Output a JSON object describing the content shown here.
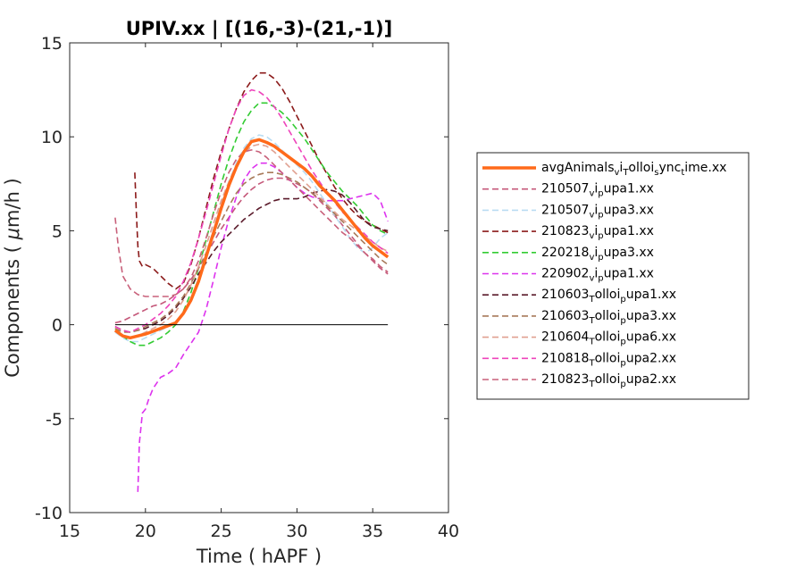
{
  "chart_data": {
    "type": "line",
    "title": "UPIV.xx  | [(16,-3)-(21,-1)]",
    "xlabel": "Time ( hAPF )",
    "ylabel_prefix": "Components ( ",
    "ylabel_mu": "μ",
    "ylabel_suffix": "m/h )",
    "xlim": [
      15,
      40
    ],
    "ylim": [
      -10,
      15
    ],
    "xticks": [
      15,
      20,
      25,
      30,
      35,
      40
    ],
    "yticks": [
      -10,
      -5,
      0,
      5,
      10,
      15
    ],
    "xtick_labels": [
      "15",
      "20",
      "25",
      "30",
      "35",
      "40"
    ],
    "ytick_labels": [
      "-10",
      "-5",
      "0",
      "5",
      "10",
      "15"
    ],
    "grid": false,
    "legend_position": "right",
    "zero_line": {
      "y": 0,
      "x": [
        18,
        36
      ],
      "color": "#000000"
    },
    "series": [
      {
        "name": "avgAnimals_v_i_T_olloi_s_ync_t_ime.xx",
        "label_parts": [
          [
            "avgAnimals",
            ""
          ],
          [
            "v",
            "sub"
          ],
          [
            "i",
            ""
          ],
          [
            "T",
            "sub"
          ],
          [
            "olloi",
            ""
          ],
          [
            "s",
            "sub"
          ],
          [
            "ync",
            ""
          ],
          [
            "t",
            "sub"
          ],
          [
            "ime.xx",
            ""
          ]
        ],
        "color": "#ff6a1a",
        "dash": "",
        "width": 3.5,
        "x": [
          18,
          18.5,
          19,
          19.5,
          20,
          20.5,
          21,
          21.5,
          22,
          22.5,
          23,
          23.5,
          24,
          24.5,
          25,
          25.5,
          26,
          26.5,
          27,
          27.5,
          28,
          28.5,
          29,
          29.5,
          30,
          30.5,
          31,
          31.5,
          32,
          32.5,
          33,
          33.5,
          34,
          34.5,
          35,
          35.5,
          36
        ],
        "y": [
          -0.3,
          -0.6,
          -0.7,
          -0.6,
          -0.5,
          -0.35,
          -0.2,
          -0.05,
          0.1,
          0.6,
          1.3,
          2.3,
          3.6,
          4.9,
          6.2,
          7.4,
          8.4,
          9.2,
          9.75,
          9.85,
          9.7,
          9.5,
          9.2,
          8.9,
          8.6,
          8.3,
          7.9,
          7.4,
          7.0,
          6.6,
          6.1,
          5.6,
          5.1,
          4.6,
          4.2,
          3.9,
          3.6
        ]
      },
      {
        "name": "210507_v_i_p_upa1.xx",
        "label_parts": [
          [
            "210507",
            ""
          ],
          [
            "v",
            "sub"
          ],
          [
            "i",
            ""
          ],
          [
            "p",
            "sub"
          ],
          [
            "upa1.xx",
            ""
          ]
        ],
        "color": "#c5587a",
        "dash": "7,4",
        "width": 1.6,
        "x": [
          18,
          18.5,
          19,
          19.5,
          20,
          20.5,
          21,
          21.5,
          22,
          22.5,
          23,
          23.5,
          24,
          24.5,
          25,
          25.5,
          26,
          26.5,
          27,
          27.5,
          28,
          28.5,
          29,
          29.5,
          30,
          30.5,
          31,
          31.5,
          32,
          32.5,
          33,
          33.5,
          34,
          34.5,
          35,
          35.5,
          36
        ],
        "y": [
          0.1,
          0.2,
          0.4,
          0.6,
          0.8,
          1.0,
          1.1,
          1.3,
          1.6,
          1.9,
          2.4,
          3.0,
          3.7,
          4.4,
          5.1,
          5.7,
          6.3,
          6.8,
          7.2,
          7.5,
          7.7,
          7.8,
          7.8,
          7.7,
          7.5,
          7.3,
          7.0,
          6.6,
          6.2,
          5.8,
          5.3,
          4.8,
          4.3,
          3.8,
          3.4,
          3.0,
          2.7
        ]
      },
      {
        "name": "210507_v_i_p_upa3.xx",
        "label_parts": [
          [
            "210507",
            ""
          ],
          [
            "v",
            "sub"
          ],
          [
            "i",
            ""
          ],
          [
            "p",
            "sub"
          ],
          [
            "upa3.xx",
            ""
          ]
        ],
        "color": "#b9dcf2",
        "dash": "7,4",
        "width": 1.6,
        "x": [
          18,
          18.5,
          19,
          19.5,
          20,
          20.5,
          21,
          21.5,
          22,
          22.5,
          23,
          23.5,
          24,
          24.5,
          25,
          25.5,
          26,
          26.5,
          27,
          27.5,
          28,
          28.5,
          29,
          29.5,
          30,
          30.5,
          31,
          31.5,
          32,
          32.5,
          33,
          33.5,
          34,
          34.5,
          35,
          35.5,
          36
        ],
        "y": [
          -0.4,
          -0.7,
          -0.9,
          -0.9,
          -0.7,
          -0.5,
          -0.3,
          -0.1,
          0.1,
          0.6,
          1.4,
          2.5,
          3.8,
          5.1,
          6.4,
          7.6,
          8.6,
          9.4,
          9.9,
          10.1,
          10.0,
          9.7,
          9.3,
          8.9,
          8.5,
          8.1,
          7.6,
          7.0,
          6.4,
          5.8,
          5.2,
          4.6,
          4.1,
          3.8,
          4.1,
          4.6,
          4.9
        ]
      },
      {
        "name": "210823_v_i_p_upa1.xx",
        "label_parts": [
          [
            "210823",
            ""
          ],
          [
            "v",
            "sub"
          ],
          [
            "i",
            ""
          ],
          [
            "p",
            "sub"
          ],
          [
            "upa1.xx",
            ""
          ]
        ],
        "color": "#8b1a1a",
        "dash": "7,4",
        "width": 1.6,
        "x": [
          19.3,
          19.4,
          19.5,
          19.6,
          19.8,
          20,
          20.5,
          21,
          21.5,
          22,
          22.5,
          23,
          23.5,
          24,
          24.5,
          25,
          25.5,
          26,
          26.5,
          27,
          27.5,
          28,
          28.5,
          29,
          29.5,
          30,
          30.5,
          31,
          31.5,
          32,
          32.5,
          33,
          33.5,
          34,
          34.5,
          35,
          35.5,
          36
        ],
        "y": [
          8.1,
          6.0,
          4.2,
          3.4,
          3.1,
          3.2,
          3.0,
          2.6,
          2.2,
          1.9,
          2.2,
          3.2,
          4.6,
          6.2,
          7.8,
          9.2,
          10.4,
          11.5,
          12.4,
          13.0,
          13.4,
          13.4,
          13.1,
          12.6,
          11.9,
          11.1,
          10.3,
          9.5,
          8.7,
          8.0,
          7.3,
          6.7,
          6.2,
          5.8,
          5.5,
          5.3,
          5.1,
          4.9
        ]
      },
      {
        "name": "220218_v_i_p_upa3.xx",
        "label_parts": [
          [
            "220218",
            ""
          ],
          [
            "v",
            "sub"
          ],
          [
            "i",
            ""
          ],
          [
            "p",
            "sub"
          ],
          [
            "upa3.xx",
            ""
          ]
        ],
        "color": "#33cc33",
        "dash": "7,4",
        "width": 1.6,
        "x": [
          18,
          18.5,
          19,
          19.5,
          20,
          20.5,
          21,
          21.5,
          22,
          22.5,
          23,
          23.5,
          24,
          24.5,
          25,
          25.5,
          26,
          26.5,
          27,
          27.5,
          28,
          28.5,
          29,
          29.5,
          30,
          30.5,
          31,
          31.5,
          32,
          32.5,
          33,
          33.5,
          34,
          34.5,
          35,
          35.5,
          36
        ],
        "y": [
          -0.2,
          -0.6,
          -0.9,
          -1.1,
          -1.1,
          -0.9,
          -0.7,
          -0.4,
          0.0,
          0.7,
          1.7,
          3.0,
          4.5,
          6.0,
          7.5,
          8.8,
          9.9,
          10.8,
          11.4,
          11.8,
          11.8,
          11.6,
          11.3,
          10.9,
          10.4,
          9.9,
          9.3,
          8.7,
          8.1,
          7.6,
          7.1,
          6.7,
          6.3,
          5.8,
          5.3,
          5.0,
          4.8
        ]
      },
      {
        "name": "220902_v_i_p_upa1.xx",
        "label_parts": [
          [
            "220902",
            ""
          ],
          [
            "v",
            "sub"
          ],
          [
            "i",
            ""
          ],
          [
            "p",
            "sub"
          ],
          [
            "upa1.xx",
            ""
          ]
        ],
        "color": "#dd33ee",
        "dash": "7,4",
        "width": 1.6,
        "x": [
          19.5,
          19.6,
          19.7,
          19.8,
          20,
          20.2,
          20.5,
          21,
          21.5,
          22,
          22.5,
          23,
          23.5,
          24,
          24.5,
          25,
          25.5,
          26,
          26.5,
          27,
          27.5,
          28,
          28.5,
          29,
          29.5,
          30,
          30.5,
          31,
          31.5,
          32,
          32.5,
          33,
          33.5,
          34,
          34.5,
          35,
          35.5,
          36
        ],
        "y": [
          -8.9,
          -6.3,
          -5.5,
          -4.7,
          -4.5,
          -4.0,
          -3.4,
          -2.8,
          -2.6,
          -2.3,
          -1.6,
          -1.0,
          -0.4,
          0.8,
          2.4,
          4.1,
          5.6,
          6.8,
          7.7,
          8.3,
          8.6,
          8.6,
          8.4,
          8.1,
          7.7,
          7.3,
          7.0,
          6.8,
          6.7,
          6.6,
          6.6,
          6.6,
          6.7,
          6.8,
          6.9,
          7.0,
          6.6,
          5.5
        ]
      },
      {
        "name": "210603_T_olloi_p_upa1.xx",
        "label_parts": [
          [
            "210603",
            ""
          ],
          [
            "T",
            "sub"
          ],
          [
            "olloi",
            ""
          ],
          [
            "p",
            "sub"
          ],
          [
            "upa1.xx",
            ""
          ]
        ],
        "color": "#5a1a2a",
        "dash": "7,4",
        "width": 1.6,
        "x": [
          18,
          18.5,
          19,
          19.5,
          20,
          20.5,
          21,
          21.5,
          22,
          22.5,
          23,
          23.5,
          24,
          24.5,
          25,
          25.5,
          26,
          26.5,
          27,
          27.5,
          28,
          28.5,
          29,
          29.5,
          30,
          30.5,
          31,
          31.5,
          32,
          32.5,
          33,
          33.5,
          34,
          34.5,
          35,
          35.5,
          36
        ],
        "y": [
          -0.1,
          -0.3,
          -0.4,
          -0.3,
          -0.2,
          0.0,
          0.2,
          0.5,
          0.9,
          1.4,
          2.0,
          2.7,
          3.3,
          3.9,
          4.4,
          4.8,
          5.2,
          5.6,
          5.9,
          6.2,
          6.4,
          6.6,
          6.7,
          6.7,
          6.7,
          6.8,
          7.0,
          7.1,
          7.2,
          7.1,
          6.9,
          6.5,
          6.0,
          5.5,
          5.2,
          5.1,
          5.0
        ]
      },
      {
        "name": "210603_T_olloi_p_upa3.xx",
        "label_parts": [
          [
            "210603",
            ""
          ],
          [
            "T",
            "sub"
          ],
          [
            "olloi",
            ""
          ],
          [
            "p",
            "sub"
          ],
          [
            "upa3.xx",
            ""
          ]
        ],
        "color": "#a87a5a",
        "dash": "7,4",
        "width": 1.6,
        "x": [
          18,
          18.5,
          19,
          19.5,
          20,
          20.5,
          21,
          21.5,
          22,
          22.5,
          23,
          23.5,
          24,
          24.5,
          25,
          25.5,
          26,
          26.5,
          27,
          27.5,
          28,
          28.5,
          29,
          29.5,
          30,
          30.5,
          31,
          31.5,
          32,
          32.5,
          33,
          33.5,
          34,
          34.5,
          35,
          35.5,
          36
        ],
        "y": [
          -0.2,
          -0.4,
          -0.4,
          -0.3,
          -0.1,
          0.1,
          0.3,
          0.6,
          1.0,
          1.5,
          2.2,
          3.0,
          3.8,
          4.7,
          5.5,
          6.3,
          7.0,
          7.5,
          7.8,
          8.0,
          8.1,
          8.1,
          8.0,
          7.8,
          7.6,
          7.3,
          7.0,
          6.7,
          6.3,
          5.9,
          5.5,
          5.1,
          4.7,
          4.3,
          3.9,
          3.5,
          3.2
        ]
      },
      {
        "name": "210604_T_olloi_p_upa6.xx",
        "label_parts": [
          [
            "210604",
            ""
          ],
          [
            "T",
            "sub"
          ],
          [
            "olloi",
            ""
          ],
          [
            "p",
            "sub"
          ],
          [
            "upa6.xx",
            ""
          ]
        ],
        "color": "#e0a090",
        "dash": "7,4",
        "width": 1.6,
        "x": [
          18,
          18.5,
          19,
          19.5,
          20,
          20.5,
          21,
          21.5,
          22,
          22.5,
          23,
          23.5,
          24,
          24.5,
          25,
          25.5,
          26,
          26.5,
          27,
          27.5,
          28,
          28.5,
          29,
          29.5,
          30,
          30.5,
          31,
          31.5,
          32,
          32.5,
          33,
          33.5,
          34,
          34.5,
          35,
          35.5,
          36
        ],
        "y": [
          -0.3,
          -0.6,
          -0.7,
          -0.6,
          -0.4,
          -0.2,
          0.0,
          0.3,
          0.7,
          1.3,
          2.1,
          3.1,
          4.2,
          5.4,
          6.6,
          7.6,
          8.5,
          9.1,
          9.5,
          9.6,
          9.5,
          9.2,
          8.8,
          8.4,
          8.0,
          7.6,
          7.2,
          6.8,
          6.4,
          6.0,
          5.6,
          5.3,
          5.0,
          4.7,
          4.4,
          4.1,
          3.9
        ]
      },
      {
        "name": "210818_T_olloi_p_upa2.xx",
        "label_parts": [
          [
            "210818",
            ""
          ],
          [
            "T",
            "sub"
          ],
          [
            "olloi",
            ""
          ],
          [
            "p",
            "sub"
          ],
          [
            "upa2.xx",
            ""
          ]
        ],
        "color": "#ee44bb",
        "dash": "7,4",
        "width": 1.6,
        "x": [
          18,
          18.5,
          19,
          19.5,
          20,
          20.5,
          21,
          21.5,
          22,
          22.5,
          23,
          23.5,
          24,
          24.5,
          25,
          25.5,
          26,
          26.5,
          27,
          27.5,
          28,
          28.5,
          29,
          29.5,
          30,
          30.5,
          31,
          31.5,
          32,
          32.5,
          33,
          33.5,
          34,
          34.5,
          35,
          35.5,
          36
        ],
        "y": [
          -0.1,
          -0.3,
          -0.4,
          -0.2,
          0.0,
          0.3,
          0.6,
          1.0,
          1.5,
          2.3,
          3.3,
          4.6,
          6.0,
          7.5,
          9.0,
          10.4,
          11.5,
          12.2,
          12.5,
          12.4,
          12.1,
          11.6,
          11.0,
          10.3,
          9.6,
          8.9,
          8.2,
          7.6,
          7.0,
          6.5,
          6.0,
          5.6,
          5.2,
          4.8,
          4.4,
          4.1,
          3.8
        ]
      },
      {
        "name": "210823_T_olloi_p_upa2.xx",
        "label_parts": [
          [
            "210823",
            ""
          ],
          [
            "T",
            "sub"
          ],
          [
            "olloi",
            ""
          ],
          [
            "p",
            "sub"
          ],
          [
            "upa2.xx",
            ""
          ]
        ],
        "color": "#c8607a",
        "dash": "7,4",
        "width": 1.6,
        "x": [
          18,
          18.2,
          18.5,
          19,
          19.5,
          20,
          20.5,
          21,
          21.5,
          22,
          22.5,
          23,
          23.5,
          24,
          24.5,
          25,
          25.5,
          26,
          26.5,
          27,
          27.5,
          28,
          28.5,
          29,
          29.5,
          30,
          30.5,
          31,
          31.5,
          32,
          32.5,
          33,
          33.5,
          34,
          34.5,
          35,
          35.5,
          36
        ],
        "y": [
          5.7,
          4.2,
          2.6,
          1.9,
          1.6,
          1.5,
          1.5,
          1.5,
          1.5,
          1.6,
          1.9,
          2.5,
          3.4,
          4.6,
          5.9,
          7.1,
          8.1,
          8.8,
          9.2,
          9.3,
          9.2,
          8.9,
          8.5,
          8.1,
          7.7,
          7.3,
          6.9,
          6.5,
          6.1,
          5.7,
          5.3,
          4.9,
          4.6,
          4.2,
          3.8,
          3.5,
          3.1,
          2.8
        ]
      }
    ]
  }
}
